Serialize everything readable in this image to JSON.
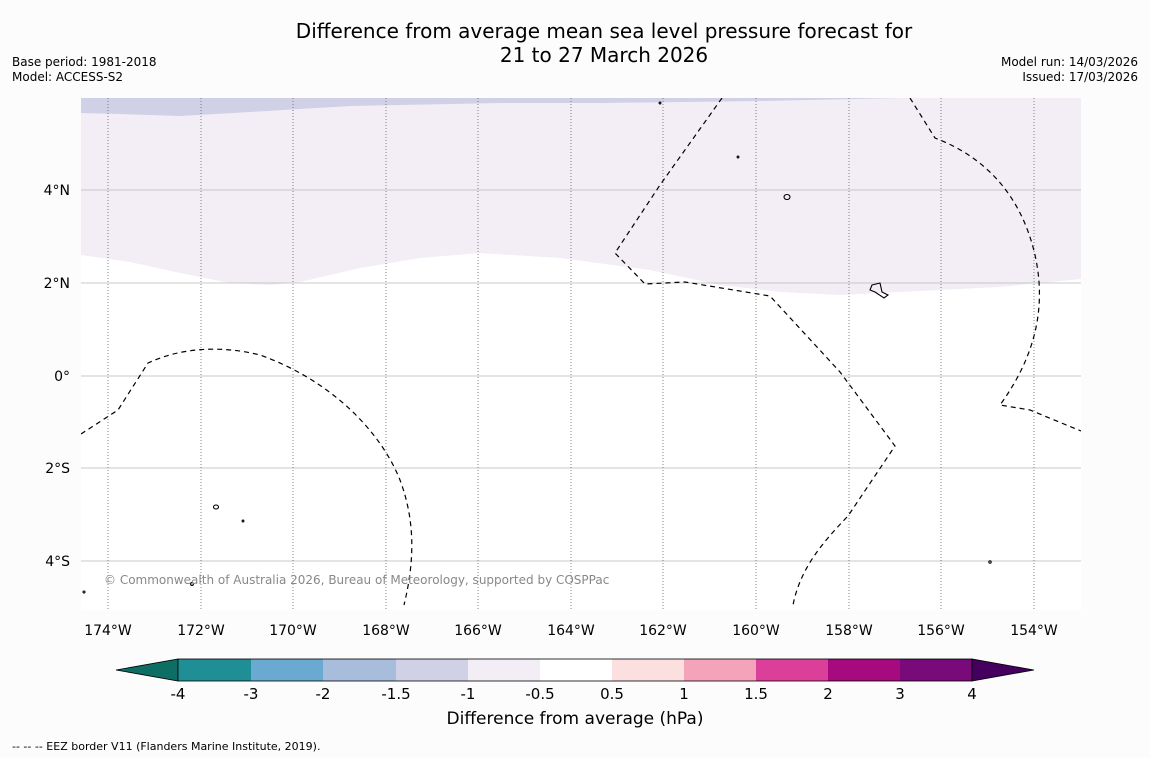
{
  "title_line1": "Difference from average mean sea level pressure forecast for",
  "title_line2": "21 to 27 March 2026",
  "base_period": "Base period: 1981-2018",
  "model": "Model: ACCESS-S2",
  "model_run": "Model run: 14/03/2026",
  "issued": "Issued: 17/03/2026",
  "copyright": "© Commonwealth of Australia 2026, Bureau of Meteorology, supported by COSPPac",
  "longitude_labels": [
    "174°W",
    "172°W",
    "170°W",
    "168°W",
    "166°W",
    "164°W",
    "162°W",
    "160°W",
    "158°W",
    "156°W",
    "154°W"
  ],
  "latitude_labels": [
    "4°N",
    "2°N",
    "0°",
    "2°S",
    "4°S"
  ],
  "colorbar": {
    "title": "Difference from average (hPa)",
    "tick_labels": [
      "-4",
      "-3",
      "-2",
      "-1.5",
      "-1",
      "-0.5",
      "0.5",
      "1",
      "1.5",
      "2",
      "3",
      "4"
    ],
    "colors": [
      "#0f6e63",
      "#1f8f95",
      "#6aaad1",
      "#a8bcdc",
      "#d0d0e6",
      "#f3edf5",
      "#ffffff",
      "#fce0e0",
      "#f4a3bb",
      "#dc3f9a",
      "#a60a7e",
      "#790a7a",
      "#45005f"
    ]
  },
  "fill_colors": {
    "minus_1_5_to_minus_1": "#d0d0e6",
    "minus_1_to_minus_0_5": "#f3edf5",
    "eez_line": "#000000"
  },
  "footer": "--  --  -- EEZ border V11 (Flanders Marine Institute, 2019)."
}
